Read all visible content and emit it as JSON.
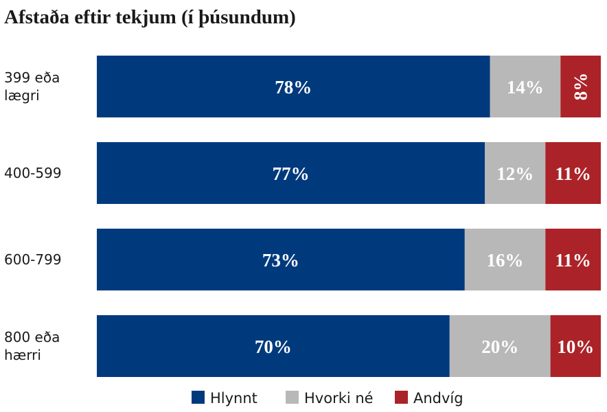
{
  "chart_data": {
    "type": "bar",
    "orientation": "horizontal",
    "stacked": true,
    "title": "Afstaða eftir tekjum (í þúsundum)",
    "categories": [
      [
        "399 eða",
        "lægri"
      ],
      [
        "400-599"
      ],
      [
        "600-799"
      ],
      [
        "800 eða",
        "hærri"
      ]
    ],
    "series": [
      {
        "name": "Hlynnt",
        "color": "#003a7d",
        "values": [
          78,
          77,
          73,
          70
        ],
        "labels": [
          "78%",
          "77%",
          "73%",
          "70%"
        ]
      },
      {
        "name": "Hvorki né",
        "color": "#b8b8b8",
        "values": [
          14,
          12,
          16,
          20
        ],
        "labels": [
          "14%",
          "12%",
          "16%",
          "20%"
        ]
      },
      {
        "name": "Andvíg",
        "color": "#ab2328",
        "values": [
          8,
          11,
          11,
          10
        ],
        "labels": [
          "8%",
          "11%",
          "11%",
          "10%"
        ]
      }
    ],
    "label_rotated": [
      [
        false,
        false,
        true
      ],
      [
        false,
        false,
        false
      ],
      [
        false,
        false,
        false
      ],
      [
        false,
        false,
        false
      ]
    ],
    "legend_position": "bottom",
    "grid": false
  }
}
